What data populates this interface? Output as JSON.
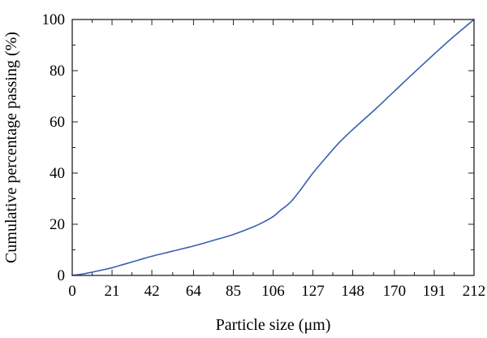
{
  "chart_data": {
    "type": "line",
    "title": "",
    "xlabel": "Particle size (μm)",
    "ylabel": "Cumulative percentage passing (%)",
    "xlim": [
      0,
      212
    ],
    "ylim": [
      0,
      100
    ],
    "x_ticks": [
      0,
      21,
      42,
      64,
      85,
      106,
      127,
      148,
      170,
      191,
      212
    ],
    "y_ticks": [
      0,
      20,
      40,
      60,
      80,
      100
    ],
    "grid": false,
    "legend": "none",
    "colors": {
      "series": "#3a5fb0",
      "axis": "#222222"
    },
    "series": [
      {
        "x": [
          0,
          5,
          10,
          15,
          21,
          28,
          35,
          42,
          53,
          64,
          75,
          85,
          95,
          100,
          106,
          110,
          115,
          120,
          127,
          135,
          141,
          148,
          160,
          170,
          180,
          191,
          200,
          212
        ],
        "values": [
          0,
          0.5,
          1.2,
          2.0,
          3.0,
          4.5,
          6.0,
          7.5,
          9.5,
          11.5,
          13.8,
          16.0,
          18.8,
          20.5,
          23.0,
          25.5,
          28.5,
          33.0,
          40.0,
          47.0,
          52.0,
          57.0,
          65.0,
          72.0,
          79.0,
          86.5,
          92.5,
          100.0
        ]
      }
    ]
  }
}
